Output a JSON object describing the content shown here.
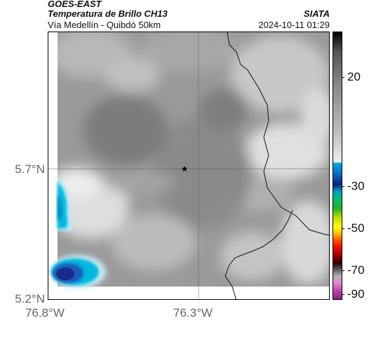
{
  "header": {
    "satellite": "GOES-EAST",
    "product": "Temperatura de Brillo CH13",
    "agency": "SIATA",
    "route": "Vía Medellín - Quibdó 50km",
    "datetime": "2024-10-11 01:29"
  },
  "map": {
    "lat_ticks": [
      "5.7°N",
      "5.2°N"
    ],
    "lon_ticks": [
      "76.8°W",
      "76.3°W"
    ],
    "marker": "star-marker",
    "colors": {
      "gray_light": "#e6e6e6",
      "gray_mid": "#9a9a9a",
      "gray_dark": "#707070",
      "cyan": "#00b7e0",
      "blue_dark": "#1a2a8a"
    }
  },
  "colorbar": {
    "ticks": [
      "20",
      "-30",
      "-50",
      "-70",
      "-90"
    ],
    "tick_values": [
      20,
      -30,
      -50,
      -70,
      -90
    ]
  }
}
